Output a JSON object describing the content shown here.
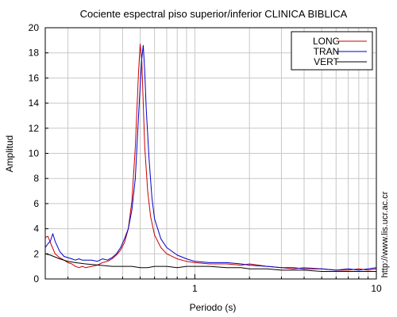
{
  "chart_data": {
    "type": "line",
    "title": "Cociente espectral piso superior/inferior  CLINICA BIBLICA",
    "xlabel": "Periodo (s)",
    "ylabel": "Amplitud",
    "xscale": "log",
    "xlim": [
      0.15,
      10
    ],
    "ylim": [
      0,
      20
    ],
    "yticks": [
      0,
      2,
      4,
      6,
      8,
      10,
      12,
      14,
      16,
      18,
      20
    ],
    "xtick_labels": [
      {
        "value": 1,
        "label": "1"
      },
      {
        "value": 10,
        "label": "10"
      }
    ],
    "grid": true,
    "legend_position": "top-right",
    "series": [
      {
        "name": "LONG",
        "color": "#cc0000",
        "x": [
          0.15,
          0.155,
          0.16,
          0.17,
          0.18,
          0.19,
          0.2,
          0.21,
          0.22,
          0.23,
          0.24,
          0.25,
          0.27,
          0.29,
          0.31,
          0.33,
          0.35,
          0.37,
          0.39,
          0.41,
          0.43,
          0.45,
          0.47,
          0.49,
          0.5,
          0.51,
          0.52,
          0.53,
          0.55,
          0.57,
          0.6,
          0.65,
          0.7,
          0.8,
          0.9,
          1.0,
          1.2,
          1.5,
          1.8,
          2.0,
          2.5,
          3.0,
          3.5,
          4.0,
          5.0,
          6.0,
          7.0,
          8.0,
          9.0,
          10.0
        ],
        "y": [
          3.3,
          3.4,
          2.9,
          2.0,
          1.7,
          1.5,
          1.3,
          1.2,
          1.0,
          0.9,
          1.0,
          0.9,
          1.0,
          1.1,
          1.3,
          1.4,
          1.6,
          1.9,
          2.3,
          2.9,
          4.0,
          6.2,
          10.5,
          16.5,
          18.7,
          17.5,
          14.0,
          10.5,
          7.0,
          5.0,
          3.5,
          2.5,
          2.0,
          1.6,
          1.4,
          1.3,
          1.2,
          1.2,
          1.1,
          1.2,
          1.0,
          0.9,
          0.8,
          0.9,
          0.8,
          0.7,
          0.7,
          0.8,
          0.7,
          0.8
        ]
      },
      {
        "name": "TRAN",
        "color": "#0000cc",
        "x": [
          0.15,
          0.155,
          0.16,
          0.165,
          0.17,
          0.18,
          0.19,
          0.2,
          0.21,
          0.22,
          0.23,
          0.24,
          0.25,
          0.27,
          0.29,
          0.31,
          0.33,
          0.35,
          0.37,
          0.39,
          0.41,
          0.43,
          0.45,
          0.47,
          0.49,
          0.51,
          0.52,
          0.53,
          0.54,
          0.56,
          0.58,
          0.6,
          0.65,
          0.7,
          0.8,
          0.9,
          1.0,
          1.2,
          1.5,
          1.8,
          2.0,
          2.5,
          3.0,
          3.5,
          4.0,
          5.0,
          6.0,
          7.0,
          8.0,
          9.0,
          10.0
        ],
        "y": [
          2.5,
          2.8,
          3.0,
          3.6,
          3.0,
          2.2,
          1.8,
          1.7,
          1.6,
          1.5,
          1.6,
          1.5,
          1.5,
          1.5,
          1.4,
          1.6,
          1.5,
          1.7,
          2.0,
          2.5,
          3.2,
          4.0,
          5.5,
          8.0,
          13.0,
          17.5,
          18.6,
          16.5,
          13.5,
          9.5,
          6.5,
          4.8,
          3.2,
          2.5,
          1.9,
          1.6,
          1.4,
          1.3,
          1.3,
          1.2,
          1.1,
          1.0,
          0.9,
          0.9,
          0.8,
          0.8,
          0.7,
          0.8,
          0.7,
          0.8,
          0.9
        ]
      },
      {
        "name": "VERT",
        "color": "#000000",
        "x": [
          0.15,
          0.16,
          0.18,
          0.2,
          0.22,
          0.25,
          0.3,
          0.35,
          0.4,
          0.45,
          0.5,
          0.55,
          0.6,
          0.7,
          0.8,
          0.9,
          1.0,
          1.2,
          1.5,
          1.8,
          2.0,
          2.5,
          3.0,
          4.0,
          5.0,
          6.0,
          7.0,
          8.0,
          10.0
        ],
        "y": [
          2.0,
          1.9,
          1.6,
          1.4,
          1.3,
          1.2,
          1.1,
          1.0,
          1.0,
          1.0,
          0.9,
          0.9,
          1.0,
          1.0,
          0.9,
          1.0,
          1.0,
          1.0,
          0.9,
          0.9,
          0.8,
          0.8,
          0.7,
          0.7,
          0.6,
          0.6,
          0.6,
          0.6,
          0.6
        ]
      }
    ],
    "annotation": "http://www.lis.ucr.ac.cr"
  }
}
